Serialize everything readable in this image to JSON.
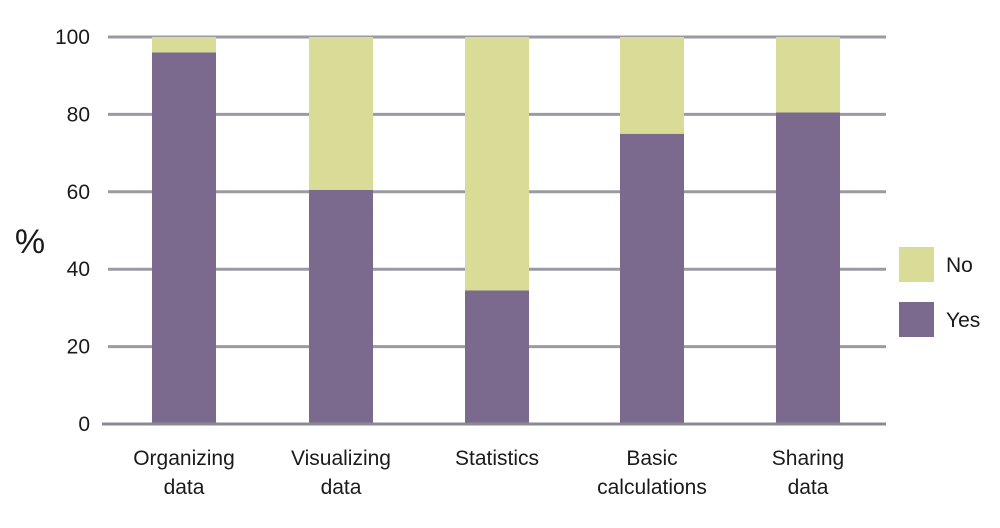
{
  "chart_data": {
    "type": "bar",
    "stacked": true,
    "categories": [
      [
        "Organizing",
        "data"
      ],
      [
        "Visualizing",
        "data"
      ],
      [
        "Statistics"
      ],
      [
        "Basic",
        "calculations"
      ],
      [
        "Sharing",
        "data"
      ]
    ],
    "series": [
      {
        "name": "Yes",
        "color": "#7b6a8e",
        "values": [
          96,
          60.5,
          34.5,
          75,
          80.5
        ]
      },
      {
        "name": "No",
        "color": "#d8dc96",
        "values": [
          4,
          39.5,
          65.5,
          25,
          19.5
        ]
      }
    ],
    "title": "",
    "xlabel": "",
    "ylabel": "%",
    "ylim": [
      0,
      100
    ],
    "yticks": [
      0,
      20,
      40,
      60,
      80,
      100
    ],
    "grid": true,
    "legend": {
      "position": "right",
      "order": [
        "No",
        "Yes"
      ]
    },
    "colors": {
      "grid": "#9a9aa3",
      "axis": "#8a8a93"
    }
  }
}
